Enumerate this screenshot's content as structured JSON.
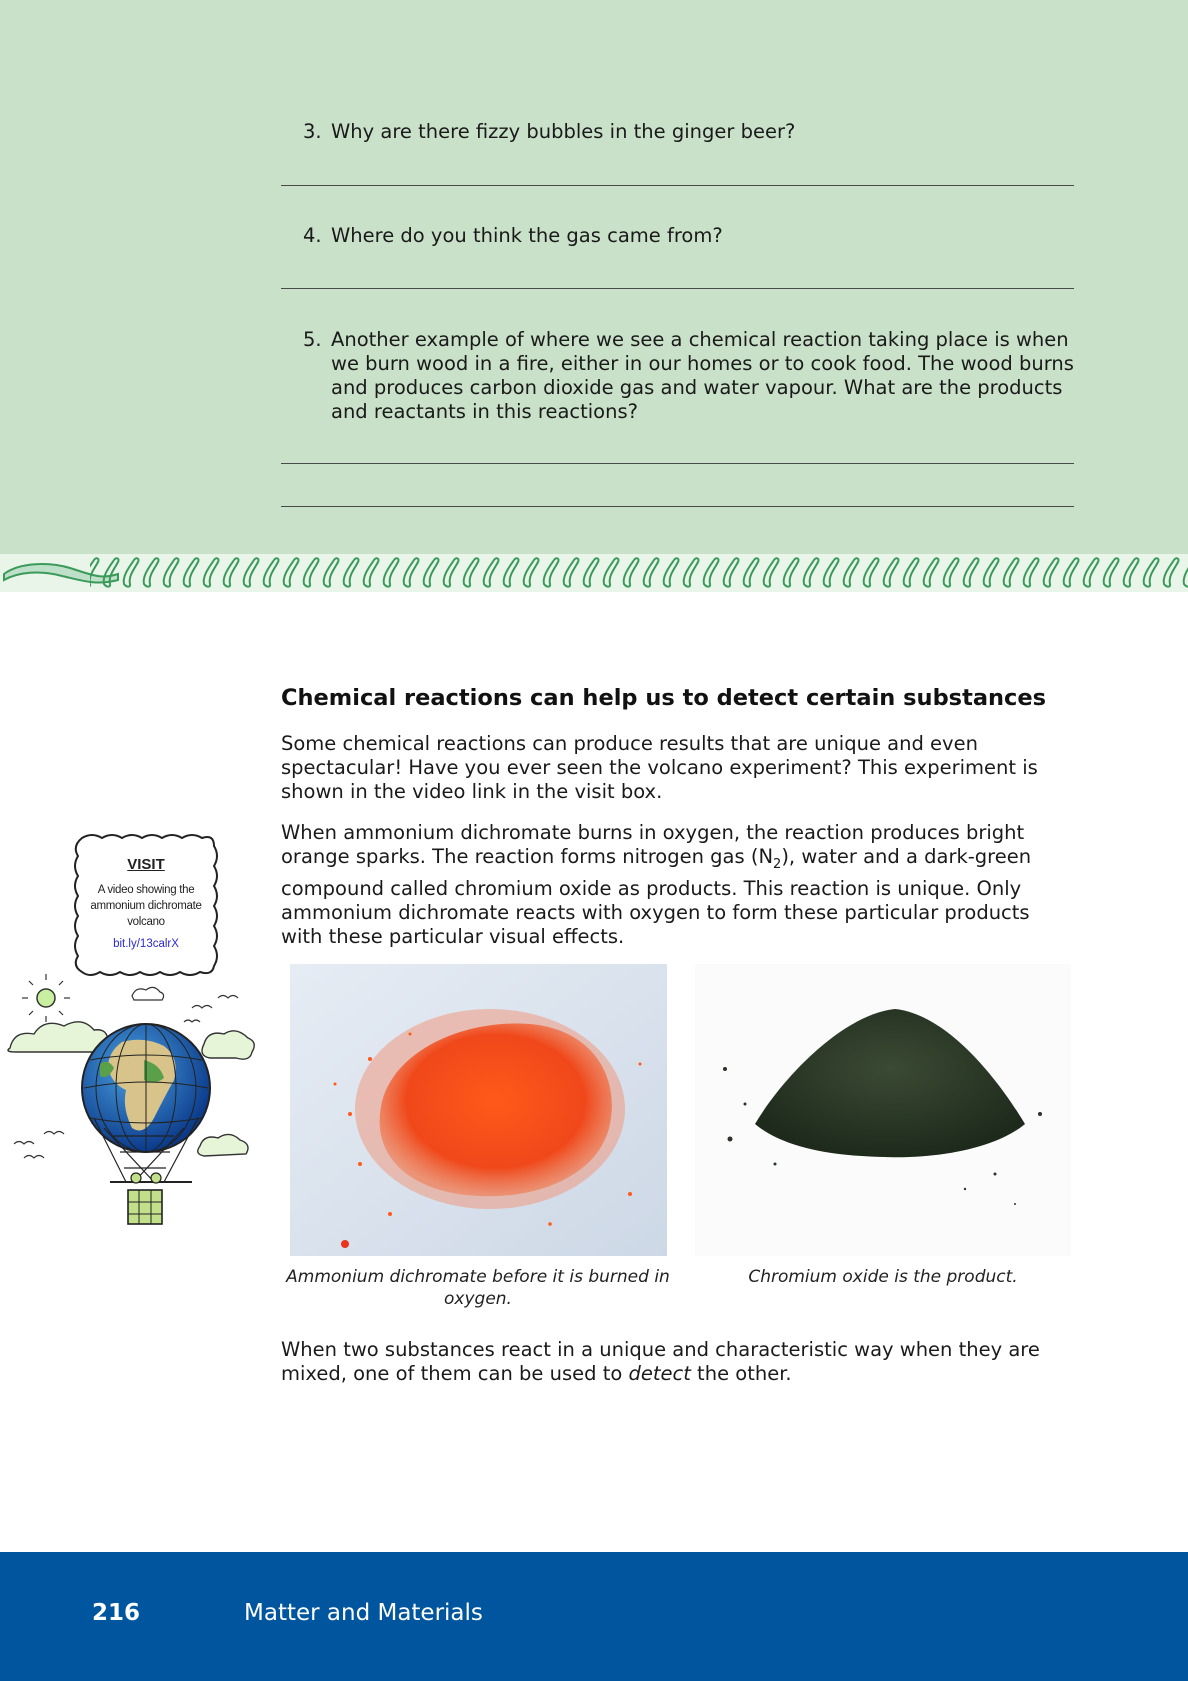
{
  "activity": {
    "questions": [
      {
        "num": "3.",
        "text": "Why are there fizzy bubbles in the ginger beer?"
      },
      {
        "num": "4.",
        "text": "Where do you think the gas came from?"
      },
      {
        "num": "5.",
        "text": "Another example of where we see a chemical reaction taking place is when we burn wood in a fire, either in our homes or to cook food. The wood burns and produces carbon dioxide gas and water vapour. What are the products and reactants in this reactions?"
      }
    ]
  },
  "section": {
    "heading": "Chemical reactions can help us to detect certain substances",
    "para1": "Some chemical reactions can produce results that are unique and even spectacular! Have you ever seen the volcano experiment? This experiment is shown in the video link in the visit box.",
    "para2": {
      "before": "When ammonium dichromate burns in oxygen, the reaction produces bright orange sparks. The reaction forms nitrogen gas (N",
      "subscript": "2",
      "after": "), water and a dark-green compound called chromium oxide as products. This reaction is unique. Only ammonium dichromate reacts with oxygen to form these particular products with these particular visual effects."
    },
    "caption_left": "Ammonium dichromate before it is burned in oxygen.",
    "caption_right": "Chromium oxide is the product.",
    "para3": {
      "before": "When two substances react in a unique and characteristic way when they are mixed, one of them can be used to ",
      "emphasis": "detect",
      "after": " the other."
    }
  },
  "visit": {
    "title": "VISIT",
    "description": "A video showing the ammonium dichromate volcano",
    "link": "bit.ly/13calrX"
  },
  "footer": {
    "page_number": "216",
    "title": "Matter and Materials"
  },
  "colors": {
    "activity_bg": "#c9e0c9",
    "footer_bg": "#00569e",
    "link": "#2a2ad0"
  },
  "icons": [
    "decorative-border",
    "hot-air-balloon-globe-illustration"
  ]
}
